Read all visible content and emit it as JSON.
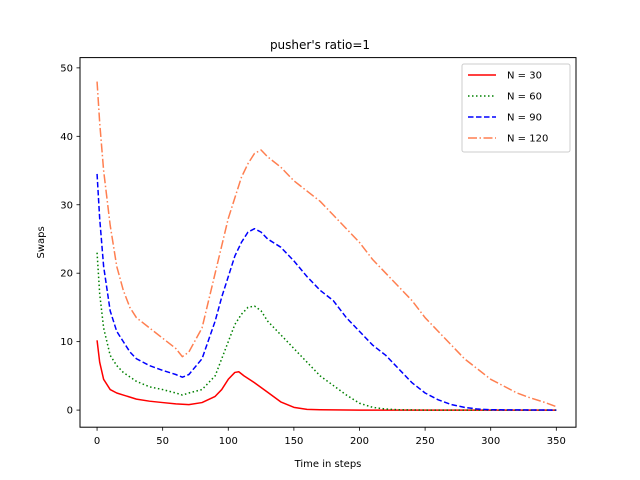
{
  "chart_data": {
    "type": "line",
    "title": "pusher's ratio=1",
    "xlabel": "Time in steps",
    "ylabel": "Swaps",
    "xlim": [
      -13,
      365
    ],
    "ylim": [
      -2.5,
      51.5
    ],
    "xticks": [
      0,
      50,
      100,
      150,
      200,
      250,
      300,
      350
    ],
    "yticks": [
      0,
      10,
      20,
      30,
      40,
      50
    ],
    "grid": false,
    "legend_position": "top-right",
    "series": [
      {
        "name": "N = 30",
        "color": "#ff0000",
        "dash": "solid",
        "points": [
          [
            0,
            10.2
          ],
          [
            2,
            7.0
          ],
          [
            5,
            4.5
          ],
          [
            10,
            3.0
          ],
          [
            15,
            2.5
          ],
          [
            20,
            2.2
          ],
          [
            30,
            1.6
          ],
          [
            40,
            1.3
          ],
          [
            50,
            1.1
          ],
          [
            60,
            0.9
          ],
          [
            70,
            0.8
          ],
          [
            80,
            1.1
          ],
          [
            90,
            2.0
          ],
          [
            95,
            3.0
          ],
          [
            100,
            4.5
          ],
          [
            105,
            5.5
          ],
          [
            108,
            5.6
          ],
          [
            112,
            5.0
          ],
          [
            120,
            4.0
          ],
          [
            130,
            2.6
          ],
          [
            140,
            1.2
          ],
          [
            150,
            0.4
          ],
          [
            160,
            0.1
          ],
          [
            170,
            0.05
          ],
          [
            200,
            0.0
          ],
          [
            350,
            0.0
          ]
        ]
      },
      {
        "name": "N = 60",
        "color": "#008000",
        "dash": "dotted",
        "points": [
          [
            0,
            23.0
          ],
          [
            2,
            17.0
          ],
          [
            5,
            12.0
          ],
          [
            10,
            8.0
          ],
          [
            15,
            6.5
          ],
          [
            20,
            5.5
          ],
          [
            30,
            4.2
          ],
          [
            40,
            3.4
          ],
          [
            50,
            3.0
          ],
          [
            60,
            2.5
          ],
          [
            65,
            2.2
          ],
          [
            70,
            2.5
          ],
          [
            80,
            3.0
          ],
          [
            90,
            5.0
          ],
          [
            95,
            7.5
          ],
          [
            100,
            10.0
          ],
          [
            105,
            12.5
          ],
          [
            110,
            14.0
          ],
          [
            115,
            15.0
          ],
          [
            120,
            15.2
          ],
          [
            125,
            14.5
          ],
          [
            130,
            13.0
          ],
          [
            140,
            11.0
          ],
          [
            150,
            9.0
          ],
          [
            160,
            7.0
          ],
          [
            170,
            5.0
          ],
          [
            180,
            3.6
          ],
          [
            190,
            2.2
          ],
          [
            200,
            1.0
          ],
          [
            210,
            0.4
          ],
          [
            220,
            0.15
          ],
          [
            230,
            0.05
          ],
          [
            250,
            0.0
          ],
          [
            350,
            0.0
          ]
        ]
      },
      {
        "name": "N = 90",
        "color": "#0000ff",
        "dash": "dashed",
        "points": [
          [
            0,
            34.5
          ],
          [
            2,
            28.0
          ],
          [
            5,
            21.0
          ],
          [
            10,
            14.5
          ],
          [
            15,
            11.5
          ],
          [
            20,
            10.0
          ],
          [
            25,
            8.5
          ],
          [
            30,
            7.5
          ],
          [
            40,
            6.5
          ],
          [
            50,
            5.8
          ],
          [
            60,
            5.2
          ],
          [
            65,
            4.8
          ],
          [
            70,
            5.2
          ],
          [
            80,
            7.5
          ],
          [
            90,
            13.0
          ],
          [
            95,
            16.5
          ],
          [
            100,
            19.5
          ],
          [
            105,
            22.5
          ],
          [
            110,
            24.5
          ],
          [
            115,
            26.0
          ],
          [
            120,
            26.5
          ],
          [
            125,
            26.0
          ],
          [
            130,
            25.0
          ],
          [
            140,
            23.8
          ],
          [
            150,
            21.8
          ],
          [
            160,
            19.5
          ],
          [
            170,
            17.5
          ],
          [
            180,
            16.0
          ],
          [
            190,
            13.5
          ],
          [
            200,
            11.5
          ],
          [
            210,
            9.5
          ],
          [
            220,
            8.0
          ],
          [
            230,
            6.0
          ],
          [
            240,
            4.0
          ],
          [
            250,
            2.5
          ],
          [
            260,
            1.5
          ],
          [
            270,
            0.8
          ],
          [
            280,
            0.4
          ],
          [
            290,
            0.15
          ],
          [
            300,
            0.05
          ],
          [
            350,
            0.0
          ]
        ]
      },
      {
        "name": "N = 120",
        "color": "#ff7f50",
        "dash": "dashdot",
        "points": [
          [
            0,
            48.0
          ],
          [
            2,
            42.0
          ],
          [
            5,
            35.0
          ],
          [
            10,
            27.0
          ],
          [
            15,
            21.0
          ],
          [
            20,
            17.5
          ],
          [
            25,
            15.0
          ],
          [
            30,
            13.5
          ],
          [
            40,
            12.0
          ],
          [
            50,
            10.5
          ],
          [
            60,
            9.0
          ],
          [
            65,
            7.8
          ],
          [
            70,
            8.5
          ],
          [
            80,
            12.0
          ],
          [
            90,
            20.0
          ],
          [
            95,
            24.0
          ],
          [
            100,
            28.0
          ],
          [
            105,
            31.0
          ],
          [
            110,
            34.0
          ],
          [
            115,
            36.0
          ],
          [
            120,
            37.5
          ],
          [
            125,
            38.0
          ],
          [
            130,
            37.0
          ],
          [
            140,
            35.5
          ],
          [
            150,
            33.5
          ],
          [
            160,
            32.0
          ],
          [
            170,
            30.5
          ],
          [
            180,
            28.5
          ],
          [
            190,
            26.5
          ],
          [
            200,
            24.5
          ],
          [
            210,
            22.0
          ],
          [
            220,
            20.0
          ],
          [
            230,
            18.0
          ],
          [
            240,
            16.0
          ],
          [
            250,
            13.5
          ],
          [
            260,
            11.5
          ],
          [
            270,
            9.5
          ],
          [
            280,
            7.5
          ],
          [
            290,
            6.0
          ],
          [
            300,
            4.5
          ],
          [
            310,
            3.5
          ],
          [
            320,
            2.5
          ],
          [
            330,
            1.8
          ],
          [
            340,
            1.2
          ],
          [
            350,
            0.5
          ]
        ]
      }
    ]
  }
}
